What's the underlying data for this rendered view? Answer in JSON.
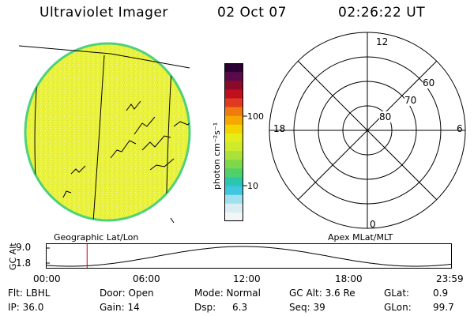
{
  "header": {
    "title": "Ultraviolet Imager",
    "date": "02 Oct 07",
    "time": "02:26:22 UT"
  },
  "globe": {
    "label": "Geographic Lat/Lon",
    "fill_color": "#e9f23a",
    "rim_color": "#4fd17a"
  },
  "colorbar": {
    "unit_label": "photon cm⁻²s⁻¹",
    "tick_100": "100",
    "tick_10": "10",
    "colors": [
      "#2a0033",
      "#5a0a4a",
      "#8a0a2a",
      "#c01020",
      "#e03a20",
      "#f07a10",
      "#f4a800",
      "#f2d400",
      "#e6ec1a",
      "#cdeb2a",
      "#a8e23a",
      "#7fd84a",
      "#4fd06a",
      "#2cc6b0",
      "#3fc6e0",
      "#9fe0ee",
      "#d8eef2",
      "#f2f6f6"
    ]
  },
  "polar": {
    "label": "Apex MLat/MLT",
    "mlt_top": "12",
    "mlt_left": "18",
    "mlt_right": "6",
    "mlt_bottom": "0",
    "lat_60": "60",
    "lat_70": "70",
    "lat_80": "80"
  },
  "altitude_plot": {
    "ylabel": "GC Alt",
    "y_max": "9.0",
    "y_min": "1.8",
    "x_ticks": [
      "00:00",
      "06:00",
      "12:00",
      "18:00",
      "23:59"
    ],
    "marker_color": "#cc0000",
    "marker_time_hours": 2.44
  },
  "info": {
    "row1": {
      "flt": "Flt: LBHL",
      "door": "Door: Open",
      "mode": "Mode: Normal",
      "gcalt": "GC Alt: 3.6 Re",
      "glat": "GLat:",
      "glat_val": "0.9"
    },
    "row2": {
      "ip": "IP: 36.0",
      "gain": "Gain: 14",
      "dsp": "Dsp:",
      "dsp_val": "6.3",
      "seq": "Seq: 39",
      "glon": "GLon:",
      "glon_val": "99.7"
    }
  }
}
